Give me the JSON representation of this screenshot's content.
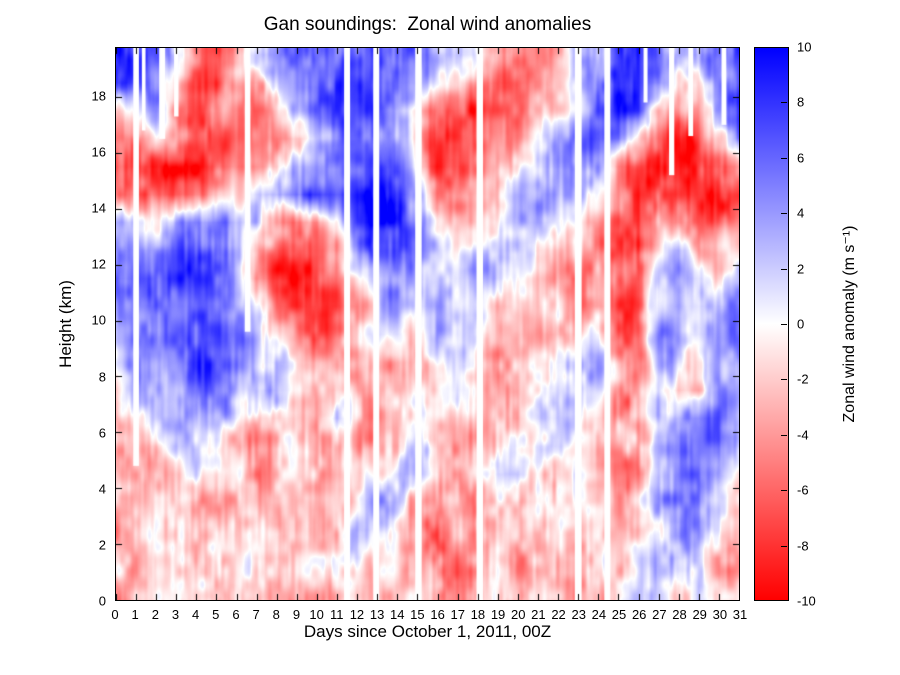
{
  "chart_data": {
    "type": "heatmap",
    "title": "Gan soundings:  Zonal wind anomalies",
    "xlabel": "Days since October 1, 2011, 00Z",
    "ylabel": "Height (km)",
    "x_range": [
      0,
      31
    ],
    "y_range": [
      0,
      19.75
    ],
    "x_ticks": [
      0,
      1,
      2,
      3,
      4,
      5,
      6,
      7,
      8,
      9,
      10,
      11,
      12,
      13,
      14,
      15,
      16,
      17,
      18,
      19,
      20,
      21,
      22,
      23,
      24,
      25,
      26,
      27,
      28,
      29,
      30,
      31
    ],
    "y_ticks": [
      0,
      2,
      4,
      6,
      8,
      10,
      12,
      14,
      16,
      18
    ],
    "days": [
      0,
      1,
      2,
      3,
      4,
      5,
      6,
      7,
      8,
      9,
      10,
      11,
      12,
      13,
      14,
      15,
      16,
      17,
      18,
      19,
      20,
      21,
      22,
      23,
      24,
      25,
      26,
      27,
      28,
      29,
      30,
      31
    ],
    "heights": [
      0.5,
      1.5,
      2.5,
      3.5,
      4.5,
      5.5,
      6.5,
      7.5,
      8.5,
      9.5,
      10.5,
      11.5,
      12.5,
      13.5,
      14.5,
      15.5,
      16.5,
      17.5,
      18.5,
      19.5
    ],
    "values": [
      [
        -3,
        -2,
        -2,
        -2,
        -2,
        -3,
        -2,
        -2,
        -3,
        -2,
        -2,
        -2,
        -2,
        -2,
        -3,
        -2,
        -5,
        -5,
        -3,
        -2,
        -4,
        -2,
        -2,
        -3,
        -2,
        -2,
        2,
        2,
        -2,
        3,
        -2,
        -2
      ],
      [
        -2,
        -3,
        -2,
        -2,
        -3,
        -2,
        -2,
        -3,
        -4,
        -3,
        -2,
        -2,
        2,
        -2,
        -2,
        -3,
        -6,
        -4,
        -2,
        -2,
        -5,
        -3,
        -2,
        -2,
        -2,
        -2,
        2,
        3,
        2,
        2,
        -2,
        -3
      ],
      [
        -3,
        -2,
        -2,
        -3,
        -2,
        -3,
        -3,
        -2,
        -3,
        -4,
        -3,
        -2,
        2,
        2,
        -2,
        -2,
        -5,
        -3,
        -2,
        -3,
        -4,
        -2,
        -2,
        -3,
        -2,
        -3,
        -2,
        2,
        3,
        4,
        2,
        -3
      ],
      [
        -2,
        -2,
        -3,
        -2,
        -2,
        -2,
        -4,
        -3,
        -2,
        -3,
        -4,
        -2,
        -2,
        2,
        2,
        -2,
        -4,
        -4,
        -3,
        -2,
        -3,
        -3,
        -2,
        -2,
        -3,
        -4,
        -2,
        2,
        4,
        5,
        3,
        -2
      ],
      [
        -2,
        -3,
        -2,
        -2,
        2,
        -2,
        -3,
        -4,
        -3,
        -2,
        -3,
        -3,
        -2,
        -2,
        2,
        2,
        -3,
        -5,
        -2,
        2,
        2,
        -2,
        -2,
        2,
        -3,
        -5,
        -3,
        3,
        5,
        6,
        4,
        -2
      ],
      [
        -3,
        -2,
        -2,
        2,
        3,
        2,
        -2,
        -3,
        -4,
        -2,
        -2,
        -2,
        -3,
        -3,
        -2,
        2,
        -4,
        -4,
        -2,
        -2,
        2,
        2,
        2,
        2,
        -2,
        -4,
        -2,
        4,
        5,
        5,
        5,
        2
      ],
      [
        -4,
        -2,
        2,
        3,
        4,
        3,
        2,
        -2,
        -3,
        -3,
        -2,
        2,
        -2,
        -4,
        -3,
        -2,
        -3,
        -2,
        -3,
        -2,
        -2,
        2,
        3,
        3,
        -2,
        -3,
        -3,
        3,
        4,
        4,
        6,
        3
      ],
      [
        -2,
        2,
        3,
        4,
        5,
        4,
        3,
        2,
        2,
        -2,
        -2,
        -2,
        -3,
        -3,
        -4,
        -2,
        -2,
        2,
        -4,
        -3,
        -2,
        -2,
        2,
        3,
        2,
        -3,
        -4,
        2,
        -2,
        -3,
        5,
        4
      ],
      [
        2,
        3,
        4,
        5,
        6,
        5,
        4,
        3,
        2,
        -2,
        -3,
        -3,
        -2,
        -2,
        -3,
        -3,
        2,
        3,
        -3,
        -4,
        -3,
        -2,
        2,
        2,
        3,
        -4,
        -5,
        3,
        2,
        -2,
        4,
        5
      ],
      [
        4,
        4,
        5,
        6,
        6,
        6,
        5,
        3,
        -2,
        -5,
        -6,
        -5,
        -3,
        2,
        2,
        -2,
        3,
        4,
        -2,
        -3,
        -4,
        -3,
        -2,
        -2,
        2,
        -5,
        -6,
        4,
        4,
        2,
        3,
        5
      ],
      [
        6,
        5,
        6,
        7,
        7,
        6,
        5,
        2,
        -5,
        -8,
        -7,
        -6,
        -4,
        2,
        3,
        2,
        4,
        3,
        2,
        -2,
        -3,
        -4,
        -2,
        -3,
        -2,
        -6,
        -7,
        3,
        5,
        3,
        2,
        4
      ],
      [
        8,
        6,
        6,
        7,
        7,
        6,
        4,
        -3,
        -7,
        -8,
        -7,
        -5,
        -2,
        3,
        5,
        3,
        3,
        2,
        3,
        2,
        -2,
        -3,
        -3,
        -4,
        -2,
        -7,
        -8,
        2,
        4,
        2,
        -2,
        3
      ],
      [
        7,
        5,
        4,
        6,
        6,
        6,
        5,
        -2,
        -6,
        -7,
        -6,
        -3,
        4,
        7,
        8,
        5,
        2,
        -2,
        2,
        3,
        2,
        -2,
        -2,
        -3,
        -3,
        -7,
        -8,
        -2,
        3,
        -4,
        -3,
        -2
      ],
      [
        5,
        2,
        -2,
        3,
        5,
        5,
        4,
        3,
        -3,
        -5,
        -4,
        2,
        8,
        9,
        9,
        6,
        -2,
        -4,
        -2,
        2,
        3,
        2,
        2,
        -2,
        -4,
        -6,
        -7,
        -3,
        -5,
        -7,
        -6,
        -5
      ],
      [
        -4,
        -6,
        -7,
        -6,
        -5,
        -4,
        -2,
        2,
        4,
        6,
        7,
        8,
        9,
        9,
        9,
        4,
        -4,
        -6,
        -4,
        -2,
        2,
        3,
        4,
        3,
        -2,
        -5,
        -7,
        -6,
        -8,
        -9,
        -8,
        -7
      ],
      [
        -7,
        -8,
        -7,
        -8,
        -9,
        -8,
        -7,
        -5,
        -3,
        4,
        6,
        7,
        8,
        9,
        8,
        -2,
        -8,
        -8,
        -6,
        -4,
        -3,
        2,
        4,
        5,
        4,
        -3,
        -6,
        -8,
        -9,
        -9,
        -8,
        -6
      ],
      [
        -6,
        -5,
        -2,
        -6,
        -8,
        -7,
        -7,
        -6,
        -5,
        -2,
        3,
        5,
        6,
        7,
        5,
        -3,
        -7,
        -8,
        -7,
        -5,
        -4,
        -2,
        2,
        5,
        7,
        6,
        -2,
        -7,
        -8,
        -7,
        -4,
        4
      ],
      [
        -3,
        2,
        4,
        -5,
        -7,
        -5,
        -6,
        -7,
        -3,
        2,
        5,
        6,
        7,
        6,
        3,
        -2,
        -5,
        -7,
        -7,
        -6,
        -5,
        -3,
        0,
        3,
        7,
        8,
        5,
        -4,
        -6,
        -5,
        3,
        7
      ],
      [
        6,
        8,
        5,
        -2,
        -6,
        -7,
        -4,
        -5,
        2,
        5,
        6,
        7,
        6,
        7,
        6,
        4,
        0,
        -3,
        -5,
        -6,
        -6,
        -4,
        -2,
        2,
        6,
        8,
        7,
        4,
        -2,
        -3,
        5,
        8
      ],
      [
        8,
        9,
        7,
        3,
        -4,
        -6,
        -2,
        3,
        6,
        7,
        7,
        6,
        5,
        6,
        7,
        6,
        4,
        2,
        0,
        -2,
        -4,
        -5,
        -3,
        0,
        4,
        7,
        8,
        6,
        3,
        2,
        7,
        9
      ]
    ],
    "missing_stripes": [
      {
        "day": 1.0,
        "width": 0.28,
        "top": 19.75,
        "bottom": 4.8
      },
      {
        "day": 1.38,
        "width": 0.18,
        "top": 19.75,
        "bottom": 16.8
      },
      {
        "day": 2.3,
        "width": 0.3,
        "top": 19.75,
        "bottom": 16.5
      },
      {
        "day": 3.0,
        "width": 0.22,
        "top": 19.75,
        "bottom": 17.3
      },
      {
        "day": 6.55,
        "width": 0.28,
        "top": 19.75,
        "bottom": 9.6
      },
      {
        "day": 11.5,
        "width": 0.3,
        "top": 19.75,
        "bottom": 0
      },
      {
        "day": 12.95,
        "width": 0.3,
        "top": 19.75,
        "bottom": 0
      },
      {
        "day": 15.05,
        "width": 0.32,
        "top": 19.75,
        "bottom": 0
      },
      {
        "day": 18.1,
        "width": 0.32,
        "top": 19.75,
        "bottom": 0
      },
      {
        "day": 23.0,
        "width": 0.34,
        "top": 19.75,
        "bottom": 0
      },
      {
        "day": 24.45,
        "width": 0.3,
        "top": 19.75,
        "bottom": 0
      },
      {
        "day": 26.35,
        "width": 0.2,
        "top": 19.75,
        "bottom": 17.8
      },
      {
        "day": 27.65,
        "width": 0.26,
        "top": 19.75,
        "bottom": 15.2
      },
      {
        "day": 28.6,
        "width": 0.24,
        "top": 19.75,
        "bottom": 16.6
      },
      {
        "day": 30.25,
        "width": 0.24,
        "top": 19.75,
        "bottom": 17.0
      }
    ],
    "noise_octaves": [
      {
        "amp": 2.4,
        "fx": 0.95,
        "fy": 0.85
      },
      {
        "amp": 1.4,
        "fx": 2.7,
        "fy": 2.3
      },
      {
        "amp": 1.0,
        "fx": 6.0,
        "fy": 0.7
      }
    ],
    "colorbar": {
      "label": "Zonal wind anomaly (m s⁻¹)",
      "ticks": [
        10,
        8,
        6,
        4,
        2,
        0,
        -2,
        -4,
        -6,
        -8,
        -10
      ],
      "range": [
        -10,
        10
      ],
      "color_max": "#0000ff",
      "color_mid": "#ffffff",
      "color_min": "#ff0000"
    }
  }
}
